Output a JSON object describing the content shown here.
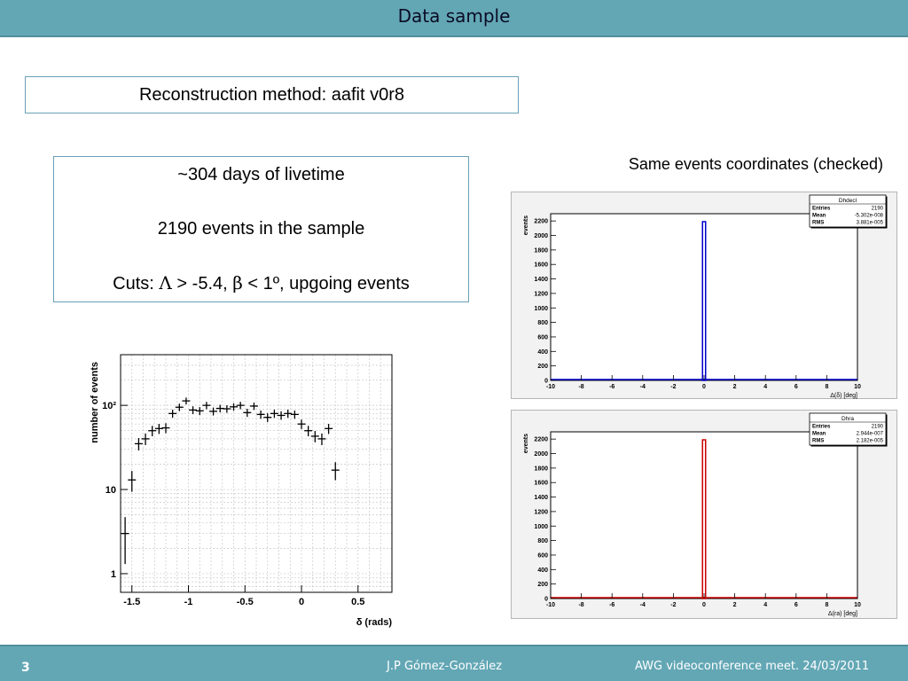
{
  "header": {
    "title": "Data sample"
  },
  "method_box": {
    "text": "Reconstruction method: aafit v0r8"
  },
  "info_box": {
    "livetime": "~304 days of livetime",
    "events": "2190 events in the sample",
    "cuts_prefix": "Cuts: ",
    "lambda_symbol": "Λ",
    "cuts_middle": " > -5.4, ",
    "beta_symbol": "β",
    "cuts_suffix": " < 1º, upgoing events"
  },
  "caption": "Same events coordinates (checked)",
  "footer": {
    "page_number": "3",
    "author": "J.P Gómez-González",
    "event": "AWG videoconference meet. 24/03/2011"
  },
  "chart_data": [
    {
      "type": "scatter",
      "xlabel": "δ (rads)",
      "ylabel": "number of events",
      "log_y": true,
      "grid": true,
      "xlim": [
        -1.6,
        0.8
      ],
      "ylim": [
        0.6,
        400
      ],
      "x_ticks": [
        -1.5,
        -1,
        -0.5,
        0,
        0.5
      ],
      "x_tick_labels": [
        "-1.5",
        "-1",
        "-0.5",
        "0",
        "0.5"
      ],
      "y_ticks": [
        1,
        10,
        100
      ],
      "y_tick_labels": [
        "1",
        "10",
        "10²"
      ],
      "points": [
        {
          "x": -1.56,
          "y": 3,
          "err": 1.7
        },
        {
          "x": -1.5,
          "y": 13,
          "err": 3.6
        },
        {
          "x": -1.44,
          "y": 35,
          "err": 5.9
        },
        {
          "x": -1.38,
          "y": 40,
          "err": 6.3
        },
        {
          "x": -1.32,
          "y": 50,
          "err": 7.1
        },
        {
          "x": -1.26,
          "y": 53,
          "err": 7.3
        },
        {
          "x": -1.2,
          "y": 54,
          "err": 7.3
        },
        {
          "x": -1.14,
          "y": 80,
          "err": 8.9
        },
        {
          "x": -1.08,
          "y": 95,
          "err": 9.7
        },
        {
          "x": -1.02,
          "y": 113,
          "err": 10.6
        },
        {
          "x": -0.96,
          "y": 88,
          "err": 9.4
        },
        {
          "x": -0.9,
          "y": 86,
          "err": 9.3
        },
        {
          "x": -0.84,
          "y": 100,
          "err": 10
        },
        {
          "x": -0.78,
          "y": 85,
          "err": 9.2
        },
        {
          "x": -0.72,
          "y": 92,
          "err": 9.6
        },
        {
          "x": -0.66,
          "y": 91,
          "err": 9.5
        },
        {
          "x": -0.6,
          "y": 96,
          "err": 9.8
        },
        {
          "x": -0.54,
          "y": 100,
          "err": 10
        },
        {
          "x": -0.48,
          "y": 82,
          "err": 9.1
        },
        {
          "x": -0.42,
          "y": 98,
          "err": 9.9
        },
        {
          "x": -0.36,
          "y": 78,
          "err": 8.8
        },
        {
          "x": -0.3,
          "y": 72,
          "err": 8.5
        },
        {
          "x": -0.24,
          "y": 80,
          "err": 8.9
        },
        {
          "x": -0.18,
          "y": 76,
          "err": 8.7
        },
        {
          "x": -0.12,
          "y": 80,
          "err": 8.9
        },
        {
          "x": -0.06,
          "y": 78,
          "err": 8.8
        },
        {
          "x": 0.0,
          "y": 60,
          "err": 7.7
        },
        {
          "x": 0.06,
          "y": 50,
          "err": 7.1
        },
        {
          "x": 0.12,
          "y": 43,
          "err": 6.6
        },
        {
          "x": 0.18,
          "y": 40,
          "err": 6.3
        },
        {
          "x": 0.24,
          "y": 53,
          "err": 7.3
        },
        {
          "x": 0.3,
          "y": 17,
          "err": 4.1
        }
      ]
    },
    {
      "type": "bar",
      "title": "Dhdecl",
      "stats": [
        {
          "label": "Entries",
          "value": "2190"
        },
        {
          "label": "Mean",
          "value": "-5.302e-008"
        },
        {
          "label": "RMS",
          "value": "3.881e-005"
        }
      ],
      "xlabel": "Δ(δ) [deg]",
      "ylabel": "events",
      "xlim": [
        -10,
        10
      ],
      "ylim": [
        0,
        2300
      ],
      "x_ticks": [
        -10,
        -8,
        -6,
        -4,
        -2,
        0,
        2,
        4,
        6,
        8,
        10
      ],
      "x_tick_labels": [
        "-10",
        "-8",
        "-6",
        "-4",
        "-2",
        "0",
        "2",
        "4",
        "6",
        "8",
        "10"
      ],
      "y_ticks": [
        0,
        200,
        400,
        600,
        800,
        1000,
        1200,
        1400,
        1600,
        1800,
        2000,
        2200
      ],
      "y_tick_labels": [
        "0",
        "200",
        "400",
        "600",
        "800",
        "1000",
        "1200",
        "1400",
        "1600",
        "1800",
        "2000",
        "2200"
      ],
      "bins": [
        {
          "x_low": -0.1,
          "x_high": 0.1,
          "value": 2190
        }
      ],
      "color": "#0000cc"
    },
    {
      "type": "bar",
      "title": "Dhra",
      "stats": [
        {
          "label": "Entries",
          "value": "2190"
        },
        {
          "label": "Mean",
          "value": "2.944e-007"
        },
        {
          "label": "RMS",
          "value": "2.182e-005"
        }
      ],
      "xlabel": "Δ(ra) [deg]",
      "ylabel": "events",
      "xlim": [
        -10,
        10
      ],
      "ylim": [
        0,
        2300
      ],
      "x_ticks": [
        -10,
        -8,
        -6,
        -4,
        -2,
        0,
        2,
        4,
        6,
        8,
        10
      ],
      "x_tick_labels": [
        "-10",
        "-8",
        "-6",
        "-4",
        "-2",
        "0",
        "2",
        "4",
        "6",
        "8",
        "10"
      ],
      "y_ticks": [
        0,
        200,
        400,
        600,
        800,
        1000,
        1200,
        1400,
        1600,
        1800,
        2000,
        2200
      ],
      "y_tick_labels": [
        "0",
        "200",
        "400",
        "600",
        "800",
        "1000",
        "1200",
        "1400",
        "1600",
        "1800",
        "2000",
        "2200"
      ],
      "bins": [
        {
          "x_low": -0.1,
          "x_high": 0.1,
          "value": 2190
        }
      ],
      "color": "#cc0000"
    }
  ]
}
